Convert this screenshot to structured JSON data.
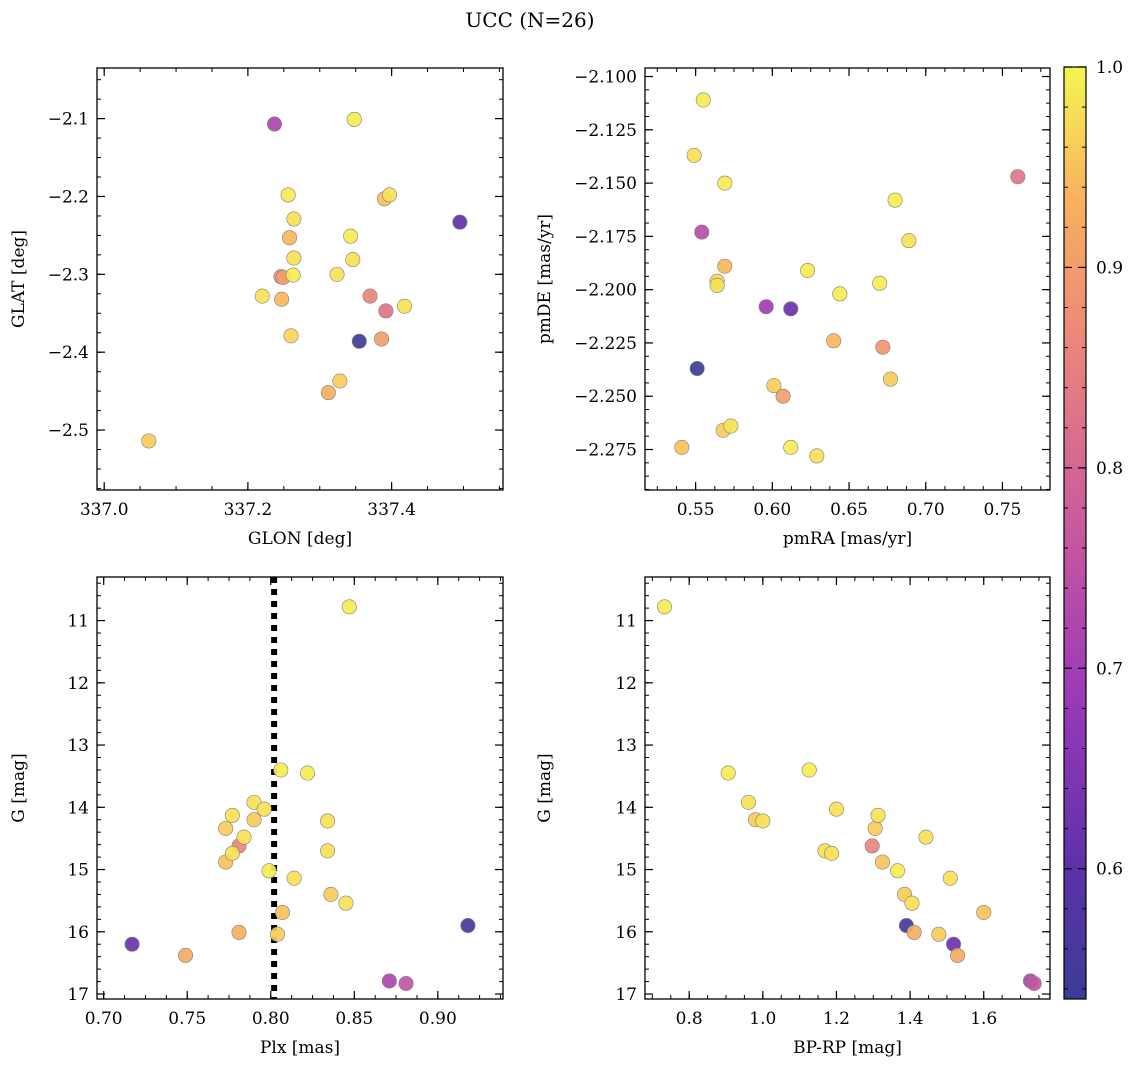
{
  "figure": {
    "title": "UCC (N=26)"
  },
  "colorbar": {
    "colormap": "plasma",
    "range": [
      0.535,
      1.0
    ],
    "ticks": [
      0.6,
      0.7,
      0.8,
      0.9,
      1.0
    ],
    "tick_labels": [
      "0.6",
      "0.7",
      "0.8",
      "0.9",
      "1.0"
    ]
  },
  "chart_data": [
    {
      "type": "scatter",
      "title": "",
      "xlabel": "GLON [deg]",
      "ylabel": "GLAT [deg]",
      "xlim": [
        336.99,
        337.555
      ],
      "ylim": [
        -2.577,
        -2.035
      ],
      "y_inverted": false,
      "xticks": [
        337.0,
        337.2,
        337.4
      ],
      "xtick_labels": [
        "337.0",
        "337.2",
        "337.4"
      ],
      "yticks": [
        -2.5,
        -2.4,
        -2.3,
        -2.2,
        -2.1
      ],
      "ytick_labels": [
        "−2.5",
        "−2.4",
        "−2.3",
        "−2.2",
        "−2.1"
      ],
      "points": [
        {
          "x": 337.237,
          "y": -2.107,
          "c": 0.72
        },
        {
          "x": 337.348,
          "y": -2.101,
          "c": 0.99
        },
        {
          "x": 337.256,
          "y": -2.198,
          "c": 0.99
        },
        {
          "x": 337.39,
          "y": -2.203,
          "c": 0.95
        },
        {
          "x": 337.397,
          "y": -2.198,
          "c": 0.98
        },
        {
          "x": 337.495,
          "y": -2.233,
          "c": 0.6
        },
        {
          "x": 337.264,
          "y": -2.229,
          "c": 0.98
        },
        {
          "x": 337.258,
          "y": -2.253,
          "c": 0.94
        },
        {
          "x": 337.343,
          "y": -2.251,
          "c": 0.99
        },
        {
          "x": 337.264,
          "y": -2.279,
          "c": 0.98
        },
        {
          "x": 337.346,
          "y": -2.281,
          "c": 0.98
        },
        {
          "x": 337.263,
          "y": -2.301,
          "c": 0.99
        },
        {
          "x": 337.324,
          "y": -2.3,
          "c": 0.98
        },
        {
          "x": 337.246,
          "y": -2.303,
          "c": 0.88
        },
        {
          "x": 337.249,
          "y": -2.304,
          "c": 0.9
        },
        {
          "x": 337.22,
          "y": -2.328,
          "c": 0.98
        },
        {
          "x": 337.247,
          "y": -2.332,
          "c": 0.94
        },
        {
          "x": 337.37,
          "y": -2.328,
          "c": 0.86
        },
        {
          "x": 337.418,
          "y": -2.341,
          "c": 0.98
        },
        {
          "x": 337.392,
          "y": -2.347,
          "c": 0.83
        },
        {
          "x": 337.26,
          "y": -2.379,
          "c": 0.97
        },
        {
          "x": 337.386,
          "y": -2.383,
          "c": 0.9
        },
        {
          "x": 337.355,
          "y": -2.386,
          "c": 0.54
        },
        {
          "x": 337.328,
          "y": -2.437,
          "c": 0.96
        },
        {
          "x": 337.312,
          "y": -2.452,
          "c": 0.93
        },
        {
          "x": 337.062,
          "y": -2.514,
          "c": 0.96
        }
      ]
    },
    {
      "type": "scatter",
      "title": "",
      "xlabel": "pmRA [mas/yr]",
      "ylabel": "pmDE [mas/yr]",
      "xlim": [
        0.517,
        0.781
      ],
      "ylim": [
        -2.294,
        -2.096
      ],
      "y_inverted": false,
      "xticks": [
        0.55,
        0.6,
        0.65,
        0.7,
        0.75
      ],
      "xtick_labels": [
        "0.55",
        "0.60",
        "0.65",
        "0.70",
        "0.75"
      ],
      "yticks": [
        -2.275,
        -2.25,
        -2.225,
        -2.2,
        -2.175,
        -2.15,
        -2.125,
        -2.1
      ],
      "ytick_labels": [
        "−2.275",
        "−2.250",
        "−2.225",
        "−2.200",
        "−2.175",
        "−2.150",
        "−2.125",
        "−2.100"
      ],
      "points": [
        {
          "x": 0.555,
          "y": -2.111,
          "c": 0.99
        },
        {
          "x": 0.549,
          "y": -2.137,
          "c": 0.98
        },
        {
          "x": 0.76,
          "y": -2.147,
          "c": 0.83
        },
        {
          "x": 0.569,
          "y": -2.15,
          "c": 0.99
        },
        {
          "x": 0.68,
          "y": -2.158,
          "c": 0.99
        },
        {
          "x": 0.554,
          "y": -2.173,
          "c": 0.74
        },
        {
          "x": 0.689,
          "y": -2.177,
          "c": 0.98
        },
        {
          "x": 0.569,
          "y": -2.189,
          "c": 0.94
        },
        {
          "x": 0.623,
          "y": -2.191,
          "c": 0.99
        },
        {
          "x": 0.564,
          "y": -2.196,
          "c": 0.97
        },
        {
          "x": 0.564,
          "y": -2.198,
          "c": 0.98
        },
        {
          "x": 0.67,
          "y": -2.197,
          "c": 0.99
        },
        {
          "x": 0.644,
          "y": -2.202,
          "c": 0.99
        },
        {
          "x": 0.596,
          "y": -2.208,
          "c": 0.7
        },
        {
          "x": 0.612,
          "y": -2.209,
          "c": 0.62
        },
        {
          "x": 0.64,
          "y": -2.224,
          "c": 0.94
        },
        {
          "x": 0.672,
          "y": -2.227,
          "c": 0.89
        },
        {
          "x": 0.551,
          "y": -2.237,
          "c": 0.54
        },
        {
          "x": 0.677,
          "y": -2.242,
          "c": 0.96
        },
        {
          "x": 0.601,
          "y": -2.245,
          "c": 0.96
        },
        {
          "x": 0.607,
          "y": -2.25,
          "c": 0.9
        },
        {
          "x": 0.573,
          "y": -2.264,
          "c": 0.98
        },
        {
          "x": 0.568,
          "y": -2.266,
          "c": 0.96
        },
        {
          "x": 0.541,
          "y": -2.274,
          "c": 0.95
        },
        {
          "x": 0.612,
          "y": -2.274,
          "c": 0.99
        },
        {
          "x": 0.629,
          "y": -2.278,
          "c": 0.98
        }
      ]
    },
    {
      "type": "scatter",
      "title": "",
      "xlabel": "Plx [mas]",
      "ylabel": "G [mag]",
      "xlim": [
        0.696,
        0.939
      ],
      "ylim": [
        17.08,
        10.3
      ],
      "y_inverted": true,
      "vline": {
        "x": 0.802,
        "style": "dotted"
      },
      "xticks": [
        0.7,
        0.75,
        0.8,
        0.85,
        0.9
      ],
      "xtick_labels": [
        "0.70",
        "0.75",
        "0.80",
        "0.85",
        "0.90"
      ],
      "yticks": [
        11,
        12,
        13,
        14,
        15,
        16,
        17
      ],
      "ytick_labels": [
        "11",
        "12",
        "13",
        "14",
        "15",
        "16",
        "17"
      ],
      "points": [
        {
          "x": 0.847,
          "y": 10.78,
          "c": 0.99
        },
        {
          "x": 0.806,
          "y": 13.4,
          "c": 0.99
        },
        {
          "x": 0.822,
          "y": 13.45,
          "c": 0.99
        },
        {
          "x": 0.79,
          "y": 13.92,
          "c": 0.98
        },
        {
          "x": 0.796,
          "y": 14.03,
          "c": 0.98
        },
        {
          "x": 0.777,
          "y": 14.13,
          "c": 0.98
        },
        {
          "x": 0.79,
          "y": 14.2,
          "c": 0.96
        },
        {
          "x": 0.834,
          "y": 14.22,
          "c": 0.98
        },
        {
          "x": 0.773,
          "y": 14.34,
          "c": 0.96
        },
        {
          "x": 0.784,
          "y": 14.48,
          "c": 0.98
        },
        {
          "x": 0.781,
          "y": 14.62,
          "c": 0.86
        },
        {
          "x": 0.834,
          "y": 14.7,
          "c": 0.98
        },
        {
          "x": 0.777,
          "y": 14.74,
          "c": 0.98
        },
        {
          "x": 0.773,
          "y": 14.88,
          "c": 0.95
        },
        {
          "x": 0.799,
          "y": 15.02,
          "c": 0.99
        },
        {
          "x": 0.814,
          "y": 15.14,
          "c": 0.98
        },
        {
          "x": 0.836,
          "y": 15.4,
          "c": 0.96
        },
        {
          "x": 0.845,
          "y": 15.54,
          "c": 0.98
        },
        {
          "x": 0.807,
          "y": 15.69,
          "c": 0.95
        },
        {
          "x": 0.918,
          "y": 15.9,
          "c": 0.55
        },
        {
          "x": 0.781,
          "y": 16.01,
          "c": 0.93
        },
        {
          "x": 0.804,
          "y": 16.04,
          "c": 0.96
        },
        {
          "x": 0.717,
          "y": 16.2,
          "c": 0.62
        },
        {
          "x": 0.749,
          "y": 16.38,
          "c": 0.92
        },
        {
          "x": 0.871,
          "y": 16.79,
          "c": 0.72
        },
        {
          "x": 0.881,
          "y": 16.83,
          "c": 0.76
        }
      ]
    },
    {
      "type": "scatter",
      "title": "",
      "xlabel": "BP-RP [mag]",
      "ylabel": "G [mag]",
      "xlim": [
        0.68,
        1.78
      ],
      "ylim": [
        17.08,
        10.3
      ],
      "y_inverted": true,
      "xticks": [
        0.8,
        1.0,
        1.2,
        1.4,
        1.6
      ],
      "xtick_labels": [
        "0.8",
        "1.0",
        "1.2",
        "1.4",
        "1.6"
      ],
      "yticks": [
        11,
        12,
        13,
        14,
        15,
        16,
        17
      ],
      "ytick_labels": [
        "11",
        "12",
        "13",
        "14",
        "15",
        "16",
        "17"
      ],
      "points": [
        {
          "x": 0.733,
          "y": 10.78,
          "c": 0.99
        },
        {
          "x": 1.126,
          "y": 13.4,
          "c": 0.99
        },
        {
          "x": 0.906,
          "y": 13.45,
          "c": 0.99
        },
        {
          "x": 0.961,
          "y": 13.92,
          "c": 0.98
        },
        {
          "x": 1.2,
          "y": 14.03,
          "c": 0.98
        },
        {
          "x": 1.313,
          "y": 14.13,
          "c": 0.98
        },
        {
          "x": 0.98,
          "y": 14.2,
          "c": 0.96
        },
        {
          "x": 1.0,
          "y": 14.22,
          "c": 0.98
        },
        {
          "x": 1.305,
          "y": 14.34,
          "c": 0.96
        },
        {
          "x": 1.443,
          "y": 14.48,
          "c": 0.98
        },
        {
          "x": 1.297,
          "y": 14.62,
          "c": 0.86
        },
        {
          "x": 1.169,
          "y": 14.7,
          "c": 0.98
        },
        {
          "x": 1.187,
          "y": 14.74,
          "c": 0.98
        },
        {
          "x": 1.325,
          "y": 14.88,
          "c": 0.95
        },
        {
          "x": 1.366,
          "y": 15.02,
          "c": 0.99
        },
        {
          "x": 1.509,
          "y": 15.14,
          "c": 0.98
        },
        {
          "x": 1.385,
          "y": 15.4,
          "c": 0.96
        },
        {
          "x": 1.405,
          "y": 15.54,
          "c": 0.98
        },
        {
          "x": 1.6,
          "y": 15.69,
          "c": 0.95
        },
        {
          "x": 1.39,
          "y": 15.9,
          "c": 0.55
        },
        {
          "x": 1.411,
          "y": 16.01,
          "c": 0.93
        },
        {
          "x": 1.478,
          "y": 16.04,
          "c": 0.96
        },
        {
          "x": 1.518,
          "y": 16.2,
          "c": 0.62
        },
        {
          "x": 1.529,
          "y": 16.38,
          "c": 0.92
        },
        {
          "x": 1.727,
          "y": 16.79,
          "c": 0.72
        },
        {
          "x": 1.737,
          "y": 16.83,
          "c": 0.76
        }
      ]
    }
  ]
}
